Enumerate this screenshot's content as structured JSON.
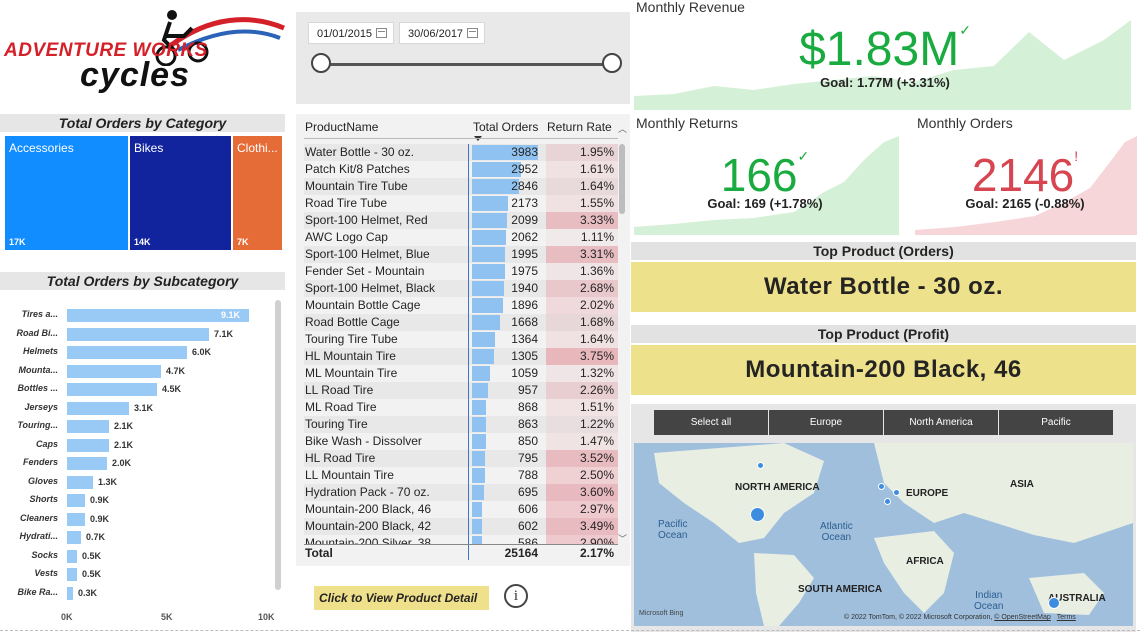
{
  "logo": {
    "line1": "ADVENTURE WORKS",
    "line2": "cycles"
  },
  "category_panel": {
    "title": "Total Orders by Category",
    "items": [
      {
        "label": "Accessories",
        "value": "17K",
        "color": "#118dff"
      },
      {
        "label": "Bikes",
        "value": "14K",
        "color": "#12239e"
      },
      {
        "label": "Clothi...",
        "value": "7K",
        "color": "#e66c37"
      }
    ]
  },
  "subcategory_panel": {
    "title": "Total Orders by Subcategory",
    "ticks": [
      "0K",
      "5K",
      "10K"
    ]
  },
  "chart_data": {
    "type": "bar",
    "orientation": "horizontal",
    "title": "Total Orders by Subcategory",
    "categories": [
      "Tires a...",
      "Road Bi...",
      "Helmets",
      "Mounta...",
      "Bottles ...",
      "Jerseys",
      "Touring...",
      "Caps",
      "Fenders",
      "Gloves",
      "Shorts",
      "Cleaners",
      "Hydrati...",
      "Socks",
      "Vests",
      "Bike Ra..."
    ],
    "values": [
      9100,
      7100,
      6000,
      4700,
      4500,
      3100,
      2100,
      2100,
      2000,
      1300,
      900,
      900,
      700,
      500,
      500,
      300
    ],
    "value_labels": [
      "9.1K",
      "7.1K",
      "6.0K",
      "4.7K",
      "4.5K",
      "3.1K",
      "2.1K",
      "2.1K",
      "2.0K",
      "1.3K",
      "0.9K",
      "0.9K",
      "0.7K",
      "0.5K",
      "0.5K",
      "0.3K"
    ],
    "xlim": [
      0,
      10000
    ],
    "color": "#99c9f5"
  },
  "date_slicer": {
    "start": "01/01/2015",
    "end": "30/06/2017"
  },
  "product_table": {
    "headers": [
      "ProductName",
      "Total Orders",
      "Return Rate"
    ],
    "max_orders": 3983,
    "rows": [
      {
        "name": "Water Bottle - 30 oz.",
        "orders": "3983",
        "ret": "1.95%",
        "ret_num": 1.95
      },
      {
        "name": "Patch Kit/8 Patches",
        "orders": "2952",
        "ret": "1.61%",
        "ret_num": 1.61
      },
      {
        "name": "Mountain Tire Tube",
        "orders": "2846",
        "ret": "1.64%",
        "ret_num": 1.64
      },
      {
        "name": "Road Tire Tube",
        "orders": "2173",
        "ret": "1.55%",
        "ret_num": 1.55
      },
      {
        "name": "Sport-100 Helmet, Red",
        "orders": "2099",
        "ret": "3.33%",
        "ret_num": 3.33
      },
      {
        "name": "AWC Logo Cap",
        "orders": "2062",
        "ret": "1.11%",
        "ret_num": 1.11
      },
      {
        "name": "Sport-100 Helmet, Blue",
        "orders": "1995",
        "ret": "3.31%",
        "ret_num": 3.31
      },
      {
        "name": "Fender Set - Mountain",
        "orders": "1975",
        "ret": "1.36%",
        "ret_num": 1.36
      },
      {
        "name": "Sport-100 Helmet, Black",
        "orders": "1940",
        "ret": "2.68%",
        "ret_num": 2.68
      },
      {
        "name": "Mountain Bottle Cage",
        "orders": "1896",
        "ret": "2.02%",
        "ret_num": 2.02
      },
      {
        "name": "Road Bottle Cage",
        "orders": "1668",
        "ret": "1.68%",
        "ret_num": 1.68
      },
      {
        "name": "Touring Tire Tube",
        "orders": "1364",
        "ret": "1.64%",
        "ret_num": 1.64
      },
      {
        "name": "HL Mountain Tire",
        "orders": "1305",
        "ret": "3.75%",
        "ret_num": 3.75
      },
      {
        "name": "ML Mountain Tire",
        "orders": "1059",
        "ret": "1.32%",
        "ret_num": 1.32
      },
      {
        "name": "LL Road Tire",
        "orders": "957",
        "ret": "2.26%",
        "ret_num": 2.26
      },
      {
        "name": "ML Road Tire",
        "orders": "868",
        "ret": "1.51%",
        "ret_num": 1.51
      },
      {
        "name": "Touring Tire",
        "orders": "863",
        "ret": "1.22%",
        "ret_num": 1.22
      },
      {
        "name": "Bike Wash - Dissolver",
        "orders": "850",
        "ret": "1.47%",
        "ret_num": 1.47
      },
      {
        "name": "HL Road Tire",
        "orders": "795",
        "ret": "3.52%",
        "ret_num": 3.52
      },
      {
        "name": "LL Mountain Tire",
        "orders": "788",
        "ret": "2.50%",
        "ret_num": 2.5
      },
      {
        "name": "Hydration Pack - 70 oz.",
        "orders": "695",
        "ret": "3.60%",
        "ret_num": 3.6
      },
      {
        "name": "Mountain-200 Black, 46",
        "orders": "606",
        "ret": "2.97%",
        "ret_num": 2.97
      },
      {
        "name": "Mountain-200 Black, 42",
        "orders": "602",
        "ret": "3.49%",
        "ret_num": 3.49
      },
      {
        "name": "Mountain-200 Silver, 38",
        "orders": "586",
        "ret": "2.90%",
        "ret_num": 2.9
      }
    ],
    "total": {
      "label": "Total",
      "orders": "25164",
      "ret": "2.17%"
    }
  },
  "product_detail_button": "Click to View Product Detail",
  "info_icon": "i",
  "kpis": {
    "revenue": {
      "title": "Monthly Revenue",
      "value": "$1.83M",
      "mark": "✓",
      "goal": "Goal: 1.77M (+3.31%)",
      "color": "#1aab40"
    },
    "returns": {
      "title": "Monthly Returns",
      "value": "166",
      "mark": "✓",
      "goal": "Goal: 169 (+1.78%)",
      "color": "#1aab40"
    },
    "orders": {
      "title": "Monthly Orders",
      "value": "2146",
      "mark": "!",
      "goal": "Goal: 2165 (-0.88%)",
      "color": "#d64550"
    }
  },
  "top_product_orders": {
    "title": "Top Product (Orders)",
    "value": "Water Bottle - 30 oz."
  },
  "top_product_profit": {
    "title": "Top Product (Profit)",
    "value": "Mountain-200 Black, 46"
  },
  "regions": [
    "Select all",
    "Europe",
    "North America",
    "Pacific"
  ],
  "map": {
    "continents": [
      "NORTH AMERICA",
      "EUROPE",
      "ASIA",
      "AFRICA",
      "SOUTH AMERICA",
      "AUSTRALIA"
    ],
    "oceans": [
      "Pacific\nOcean",
      "Atlantic\nOcean",
      "Indian\nOcean"
    ],
    "attribution": "© 2022 TomTom, © 2022 Microsoft Corporation,",
    "osm": "© OpenStreetMap",
    "terms": "Terms",
    "bing": "Microsoft Bing"
  }
}
